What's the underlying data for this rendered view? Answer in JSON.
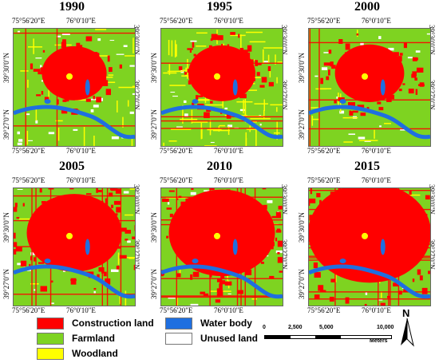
{
  "coords": {
    "lon_left": "75°56'20\"E",
    "lon_right": "76°0'10\"E",
    "lat_top": "39°30'0\"N",
    "lat_bottom": "39°27'0\"N"
  },
  "panels": [
    {
      "year": "1990",
      "construction_share": 0.18
    },
    {
      "year": "1995",
      "construction_share": 0.2
    },
    {
      "year": "2000",
      "construction_share": 0.22
    },
    {
      "year": "2005",
      "construction_share": 0.45
    },
    {
      "year": "2010",
      "construction_share": 0.55
    },
    {
      "year": "2015",
      "construction_share": 0.7
    }
  ],
  "legend": [
    {
      "label": "Construction land",
      "color": "#ff0000"
    },
    {
      "label": "Farmland",
      "color": "#7ed321"
    },
    {
      "label": "Woodland",
      "color": "#ffff00"
    },
    {
      "label": "Water body",
      "color": "#1f6fe0"
    },
    {
      "label": "Unused land",
      "color": "#ffffff"
    }
  ],
  "scale_bar": {
    "ticks": [
      "0",
      "2,500",
      "5,000",
      "10,000"
    ],
    "unit": "Meters"
  },
  "north_label": "N",
  "colors": {
    "construction": "#ff0000",
    "farmland": "#7ed321",
    "woodland": "#ffff00",
    "water": "#1f6fe0",
    "unused": "#ffffff"
  }
}
